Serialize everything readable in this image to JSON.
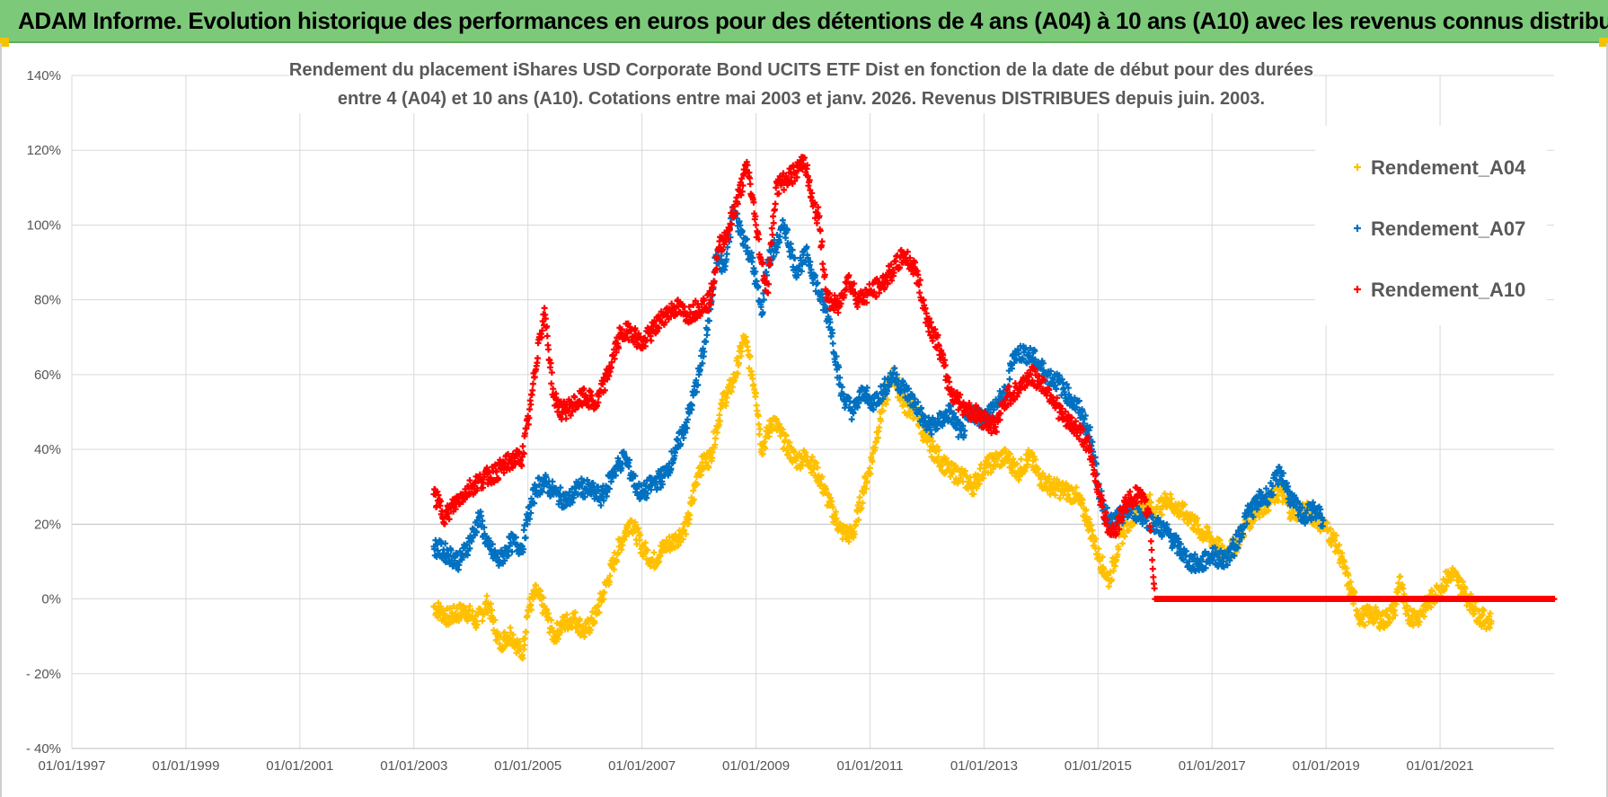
{
  "header": {
    "title": "ADAM Informe. Evolution historique des performances en euros pour des détentions de 4 ans (A04) à 10 ans (A10) avec les revenus connus distribués"
  },
  "colors": {
    "header_bg": "#7cc97a",
    "series_A04": "#ffc000",
    "series_A07": "#0070c0",
    "series_A10": "#ff0000"
  },
  "chart_data": {
    "type": "scatter",
    "title_lines": [
      "Rendement du placement iShares USD Corporate Bond UCITS ETF Dist en fonction de la date de début pour des durées",
      "entre 4 (A04) et 10 ans (A10).  Cotations entre mai 2003 et janv. 2026. Revenus DISTRIBUES depuis juin. 2003."
    ],
    "x_domain": [
      1997.0,
      2023.0
    ],
    "x_ticks": [
      {
        "value": 1997,
        "label": "01/01/1997"
      },
      {
        "value": 1999,
        "label": "01/01/1999"
      },
      {
        "value": 2001,
        "label": "01/01/2001"
      },
      {
        "value": 2003,
        "label": "01/01/2003"
      },
      {
        "value": 2005,
        "label": "01/01/2005"
      },
      {
        "value": 2007,
        "label": "01/01/2007"
      },
      {
        "value": 2009,
        "label": "01/01/2009"
      },
      {
        "value": 2011,
        "label": "01/01/2011"
      },
      {
        "value": 2013,
        "label": "01/01/2013"
      },
      {
        "value": 2015,
        "label": "01/01/2015"
      },
      {
        "value": 2017,
        "label": "01/01/2017"
      },
      {
        "value": 2019,
        "label": "01/01/2019"
      },
      {
        "value": 2021,
        "label": "01/01/2021"
      }
    ],
    "ylim": [
      -40,
      140
    ],
    "y_ticks": [
      {
        "value": 140,
        "label": "140%"
      },
      {
        "value": 120,
        "label": "120%"
      },
      {
        "value": 100,
        "label": "100%"
      },
      {
        "value": 80,
        "label": "80%"
      },
      {
        "value": 60,
        "label": "60%"
      },
      {
        "value": 40,
        "label": "40%"
      },
      {
        "value": 20,
        "label": "20%"
      },
      {
        "value": 0,
        "label": "0%"
      },
      {
        "value": -20,
        "label": "- 20%"
      },
      {
        "value": -40,
        "label": "- 40%"
      }
    ],
    "legend_position": "top-right",
    "series": [
      {
        "name": "Rendement_A04",
        "color": "#ffc000",
        "points": [
          [
            2003.35,
            -2
          ],
          [
            2003.6,
            -5
          ],
          [
            2003.9,
            -3
          ],
          [
            2004.1,
            -6
          ],
          [
            2004.3,
            -1
          ],
          [
            2004.5,
            -12
          ],
          [
            2004.7,
            -9
          ],
          [
            2004.9,
            -15
          ],
          [
            2005.0,
            -3
          ],
          [
            2005.15,
            2
          ],
          [
            2005.3,
            -3
          ],
          [
            2005.45,
            -10
          ],
          [
            2005.6,
            -7
          ],
          [
            2005.8,
            -5
          ],
          [
            2006.0,
            -9
          ],
          [
            2006.2,
            -4
          ],
          [
            2006.4,
            5
          ],
          [
            2006.6,
            14
          ],
          [
            2006.8,
            21
          ],
          [
            2007.0,
            14
          ],
          [
            2007.2,
            10
          ],
          [
            2007.4,
            14
          ],
          [
            2007.6,
            16
          ],
          [
            2007.8,
            20
          ],
          [
            2008.0,
            35
          ],
          [
            2008.2,
            38
          ],
          [
            2008.4,
            52
          ],
          [
            2008.6,
            58
          ],
          [
            2008.8,
            70
          ],
          [
            2009.0,
            55
          ],
          [
            2009.1,
            40
          ],
          [
            2009.3,
            48
          ],
          [
            2009.5,
            42
          ],
          [
            2009.7,
            37
          ],
          [
            2009.9,
            38
          ],
          [
            2010.1,
            33
          ],
          [
            2010.3,
            25
          ],
          [
            2010.5,
            18
          ],
          [
            2010.7,
            17
          ],
          [
            2010.9,
            30
          ],
          [
            2011.0,
            35
          ],
          [
            2011.2,
            50
          ],
          [
            2011.4,
            60
          ],
          [
            2011.6,
            52
          ],
          [
            2011.8,
            50
          ],
          [
            2012.0,
            42
          ],
          [
            2012.2,
            38
          ],
          [
            2012.4,
            34
          ],
          [
            2012.6,
            33
          ],
          [
            2012.8,
            30
          ],
          [
            2013.0,
            35
          ],
          [
            2013.2,
            37
          ],
          [
            2013.4,
            38
          ],
          [
            2013.6,
            34
          ],
          [
            2013.8,
            38
          ],
          [
            2014.0,
            32
          ],
          [
            2014.2,
            30
          ],
          [
            2014.4,
            29
          ],
          [
            2014.6,
            28
          ],
          [
            2014.8,
            22
          ],
          [
            2015.0,
            12
          ],
          [
            2015.1,
            8
          ],
          [
            2015.2,
            5
          ],
          [
            2015.35,
            14
          ],
          [
            2015.5,
            20
          ],
          [
            2015.7,
            24
          ],
          [
            2015.9,
            26
          ],
          [
            2016.0,
            22
          ],
          [
            2016.2,
            27
          ],
          [
            2016.4,
            24
          ],
          [
            2016.6,
            22
          ],
          [
            2016.8,
            18
          ],
          [
            2017.0,
            16
          ],
          [
            2017.2,
            12
          ],
          [
            2017.4,
            14
          ],
          [
            2017.6,
            20
          ],
          [
            2017.8,
            24
          ],
          [
            2018.0,
            26
          ],
          [
            2018.2,
            29
          ],
          [
            2018.4,
            23
          ],
          [
            2018.6,
            24
          ],
          [
            2018.8,
            22
          ],
          [
            2019.0,
            19
          ],
          [
            2019.2,
            14
          ],
          [
            2019.4,
            4
          ],
          [
            2019.6,
            -5
          ],
          [
            2019.8,
            -4
          ],
          [
            2020.0,
            -6
          ],
          [
            2020.2,
            -3
          ],
          [
            2020.3,
            6
          ],
          [
            2020.4,
            -4
          ],
          [
            2020.6,
            -5
          ],
          [
            2020.8,
            -1
          ],
          [
            2021.0,
            3
          ],
          [
            2021.2,
            7
          ],
          [
            2021.3,
            5
          ],
          [
            2021.5,
            0
          ],
          [
            2021.7,
            -5
          ],
          [
            2021.9,
            -6
          ]
        ]
      },
      {
        "name": "Rendement_A07",
        "color": "#0070c0",
        "points": [
          [
            2003.35,
            14
          ],
          [
            2003.6,
            12
          ],
          [
            2003.8,
            10
          ],
          [
            2004.0,
            16
          ],
          [
            2004.15,
            22
          ],
          [
            2004.3,
            14
          ],
          [
            2004.5,
            10
          ],
          [
            2004.7,
            15
          ],
          [
            2004.9,
            14
          ],
          [
            2005.0,
            22
          ],
          [
            2005.15,
            30
          ],
          [
            2005.3,
            31
          ],
          [
            2005.5,
            28
          ],
          [
            2005.7,
            26
          ],
          [
            2005.9,
            30
          ],
          [
            2006.1,
            29
          ],
          [
            2006.3,
            27
          ],
          [
            2006.5,
            34
          ],
          [
            2006.7,
            38
          ],
          [
            2006.9,
            30
          ],
          [
            2007.0,
            28
          ],
          [
            2007.2,
            31
          ],
          [
            2007.4,
            33
          ],
          [
            2007.6,
            40
          ],
          [
            2007.8,
            48
          ],
          [
            2008.0,
            60
          ],
          [
            2008.15,
            72
          ],
          [
            2008.3,
            92
          ],
          [
            2008.45,
            88
          ],
          [
            2008.6,
            104
          ],
          [
            2008.75,
            98
          ],
          [
            2008.9,
            92
          ],
          [
            2009.0,
            85
          ],
          [
            2009.1,
            76
          ],
          [
            2009.2,
            90
          ],
          [
            2009.4,
            96
          ],
          [
            2009.5,
            100
          ],
          [
            2009.7,
            88
          ],
          [
            2009.9,
            92
          ],
          [
            2010.1,
            82
          ],
          [
            2010.3,
            74
          ],
          [
            2010.5,
            55
          ],
          [
            2010.7,
            50
          ],
          [
            2010.9,
            56
          ],
          [
            2011.0,
            52
          ],
          [
            2011.2,
            55
          ],
          [
            2011.4,
            60
          ],
          [
            2011.6,
            56
          ],
          [
            2011.8,
            52
          ],
          [
            2012.0,
            46
          ],
          [
            2012.2,
            47
          ],
          [
            2012.4,
            50
          ],
          [
            2012.6,
            44
          ],
          [
            2012.8,
            50
          ],
          [
            2013.0,
            48
          ],
          [
            2013.2,
            52
          ],
          [
            2013.4,
            55
          ],
          [
            2013.5,
            65
          ],
          [
            2013.7,
            66
          ],
          [
            2013.9,
            64
          ],
          [
            2014.1,
            60
          ],
          [
            2014.3,
            58
          ],
          [
            2014.5,
            54
          ],
          [
            2014.7,
            50
          ],
          [
            2014.9,
            42
          ],
          [
            2015.0,
            30
          ],
          [
            2015.2,
            20
          ],
          [
            2015.4,
            22
          ],
          [
            2015.6,
            24
          ],
          [
            2015.8,
            22
          ],
          [
            2016.0,
            20
          ],
          [
            2016.2,
            18
          ],
          [
            2016.4,
            14
          ],
          [
            2016.6,
            10
          ],
          [
            2016.8,
            9
          ],
          [
            2017.0,
            12
          ],
          [
            2017.2,
            10
          ],
          [
            2017.4,
            14
          ],
          [
            2017.6,
            22
          ],
          [
            2017.8,
            26
          ],
          [
            2018.0,
            28
          ],
          [
            2018.2,
            34
          ],
          [
            2018.4,
            26
          ],
          [
            2018.6,
            22
          ],
          [
            2018.8,
            24
          ],
          [
            2018.95,
            21
          ]
        ]
      },
      {
        "name": "Rendement_A10",
        "color": "#ff0000",
        "points": [
          [
            2003.35,
            28
          ],
          [
            2003.55,
            22
          ],
          [
            2003.8,
            27
          ],
          [
            2004.0,
            30
          ],
          [
            2004.2,
            32
          ],
          [
            2004.45,
            34
          ],
          [
            2004.7,
            37
          ],
          [
            2004.9,
            38
          ],
          [
            2005.05,
            52
          ],
          [
            2005.2,
            70
          ],
          [
            2005.3,
            76
          ],
          [
            2005.45,
            54
          ],
          [
            2005.6,
            50
          ],
          [
            2005.8,
            52
          ],
          [
            2006.0,
            54
          ],
          [
            2006.2,
            52
          ],
          [
            2006.4,
            60
          ],
          [
            2006.6,
            70
          ],
          [
            2006.8,
            72
          ],
          [
            2007.0,
            68
          ],
          [
            2007.2,
            72
          ],
          [
            2007.4,
            76
          ],
          [
            2007.6,
            78
          ],
          [
            2007.8,
            76
          ],
          [
            2008.0,
            78
          ],
          [
            2008.2,
            80
          ],
          [
            2008.35,
            94
          ],
          [
            2008.5,
            98
          ],
          [
            2008.7,
            108
          ],
          [
            2008.85,
            116
          ],
          [
            2009.0,
            100
          ],
          [
            2009.1,
            90
          ],
          [
            2009.2,
            82
          ],
          [
            2009.35,
            110
          ],
          [
            2009.5,
            112
          ],
          [
            2009.7,
            114
          ],
          [
            2009.85,
            118
          ],
          [
            2010.0,
            105
          ],
          [
            2010.1,
            102
          ],
          [
            2010.25,
            80
          ],
          [
            2010.45,
            78
          ],
          [
            2010.6,
            86
          ],
          [
            2010.8,
            80
          ],
          [
            2011.0,
            82
          ],
          [
            2011.2,
            84
          ],
          [
            2011.4,
            88
          ],
          [
            2011.6,
            92
          ],
          [
            2011.8,
            88
          ],
          [
            2012.0,
            75
          ],
          [
            2012.2,
            68
          ],
          [
            2012.4,
            56
          ],
          [
            2012.6,
            52
          ],
          [
            2012.8,
            50
          ],
          [
            2013.0,
            48
          ],
          [
            2013.2,
            46
          ],
          [
            2013.4,
            54
          ],
          [
            2013.6,
            56
          ],
          [
            2013.8,
            60
          ],
          [
            2014.0,
            58
          ],
          [
            2014.2,
            54
          ],
          [
            2014.4,
            48
          ],
          [
            2014.6,
            46
          ],
          [
            2014.8,
            42
          ],
          [
            2015.0,
            30
          ],
          [
            2015.15,
            20
          ],
          [
            2015.3,
            18
          ],
          [
            2015.5,
            26
          ],
          [
            2015.7,
            28
          ],
          [
            2015.9,
            23
          ],
          [
            2016.0,
            0
          ],
          [
            2017.0,
            0
          ],
          [
            2018.0,
            0
          ],
          [
            2019.0,
            0
          ],
          [
            2020.0,
            0
          ],
          [
            2021.0,
            0
          ],
          [
            2022.0,
            0
          ],
          [
            2023.0,
            0
          ]
        ]
      }
    ]
  }
}
